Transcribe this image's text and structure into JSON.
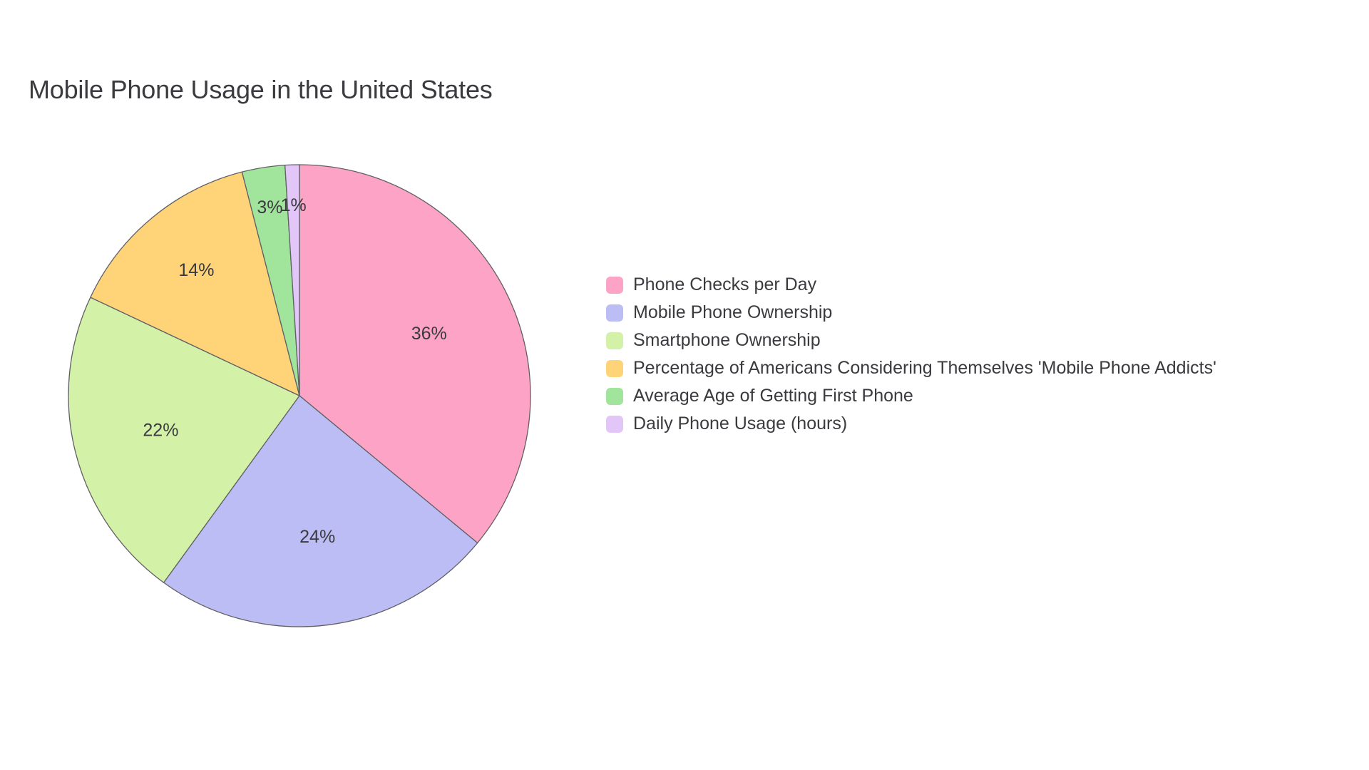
{
  "chart": {
    "type": "pie",
    "title": "Mobile Phone Usage in the United States",
    "title_fontsize": 36,
    "title_color": "#3a3a3f",
    "background_color": "#ffffff",
    "stroke_color": "#606065",
    "stroke_width": 1.3,
    "label_fontsize": 25,
    "label_color": "#3a3a3f",
    "legend_fontsize": 25,
    "legend_swatch_radius": 6,
    "pie_radius": 324,
    "start_angle_deg": -90,
    "slices": [
      {
        "label": "Phone Checks per Day",
        "value": 36,
        "color": "#fda4c6",
        "display": "36%"
      },
      {
        "label": "Mobile Phone Ownership",
        "value": 24,
        "color": "#bdbdf6",
        "display": "24%"
      },
      {
        "label": "Smartphone Ownership",
        "value": 22,
        "color": "#d3f1a7",
        "display": "22%"
      },
      {
        "label": "Percentage of Americans Considering Themselves 'Mobile Phone Addicts'",
        "value": 14,
        "color": "#ffd479",
        "display": "14%"
      },
      {
        "label": "Average Age of Getting First Phone",
        "value": 3,
        "color": "#a1e59c",
        "display": "3%"
      },
      {
        "label": "Daily Phone Usage (hours)",
        "value": 1,
        "color": "#e2c6f8",
        "display": "1%"
      }
    ]
  }
}
